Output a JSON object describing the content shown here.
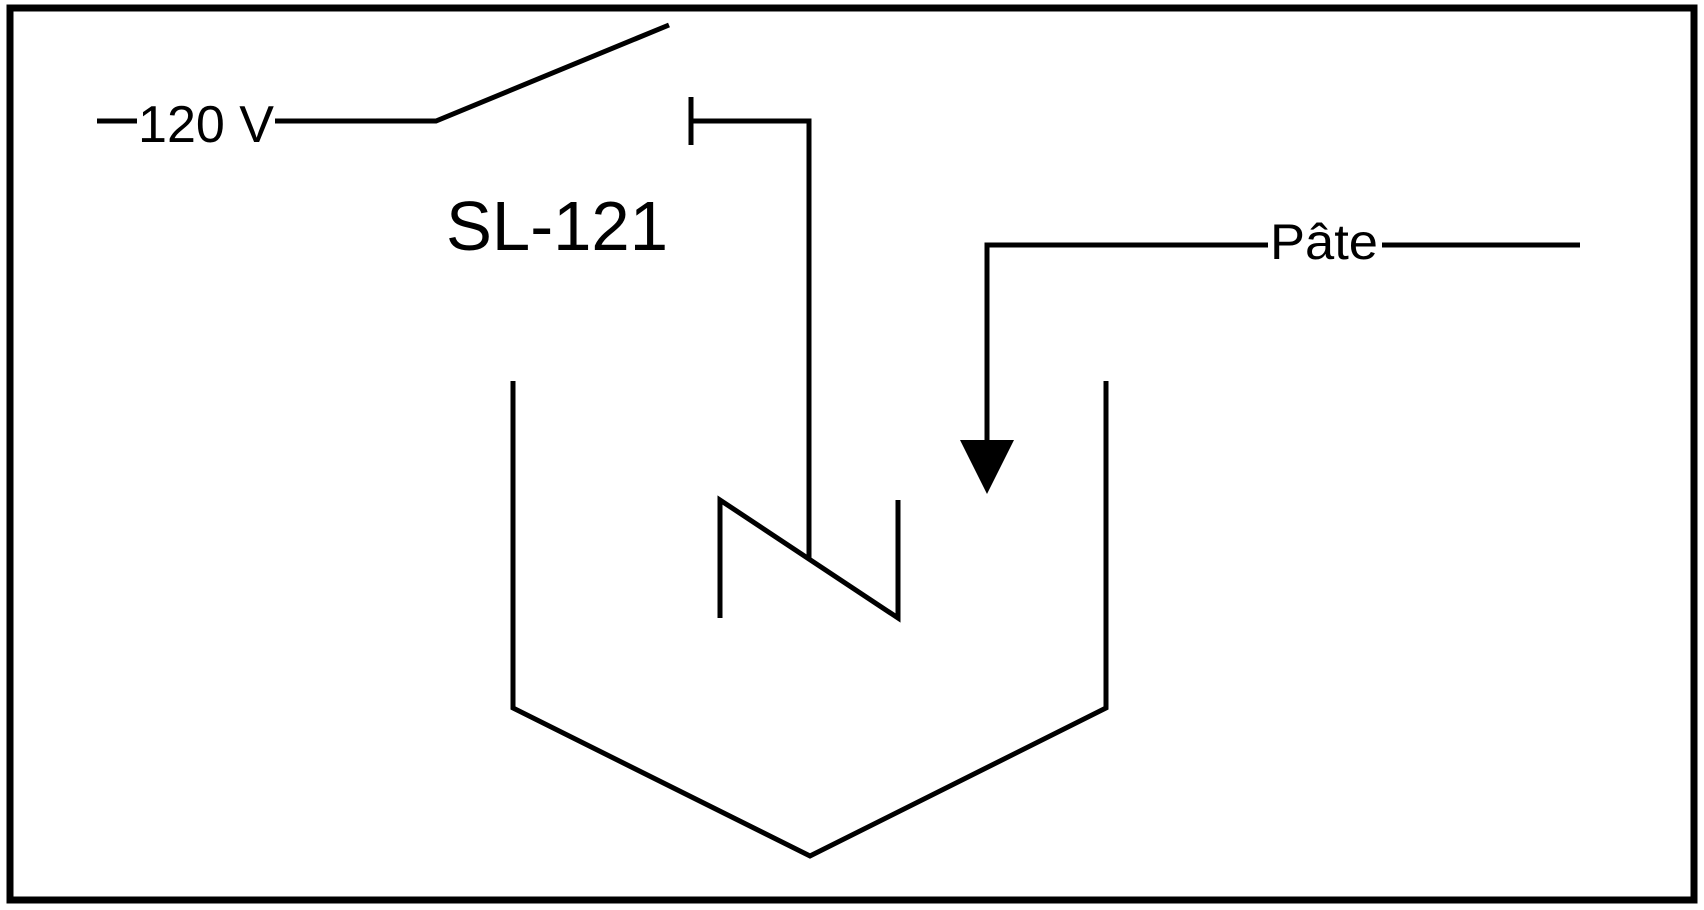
{
  "diagram": {
    "voltage_label": "120 V",
    "switch_tag": "SL-121",
    "input_label": "Pâte"
  },
  "colors": {
    "line": "#000000",
    "background": "#ffffff"
  },
  "icons": {
    "switch": "open-switch-icon",
    "heater": "heating-element-icon",
    "arrow": "arrow-down-icon",
    "tank": "tank-vessel-icon"
  }
}
